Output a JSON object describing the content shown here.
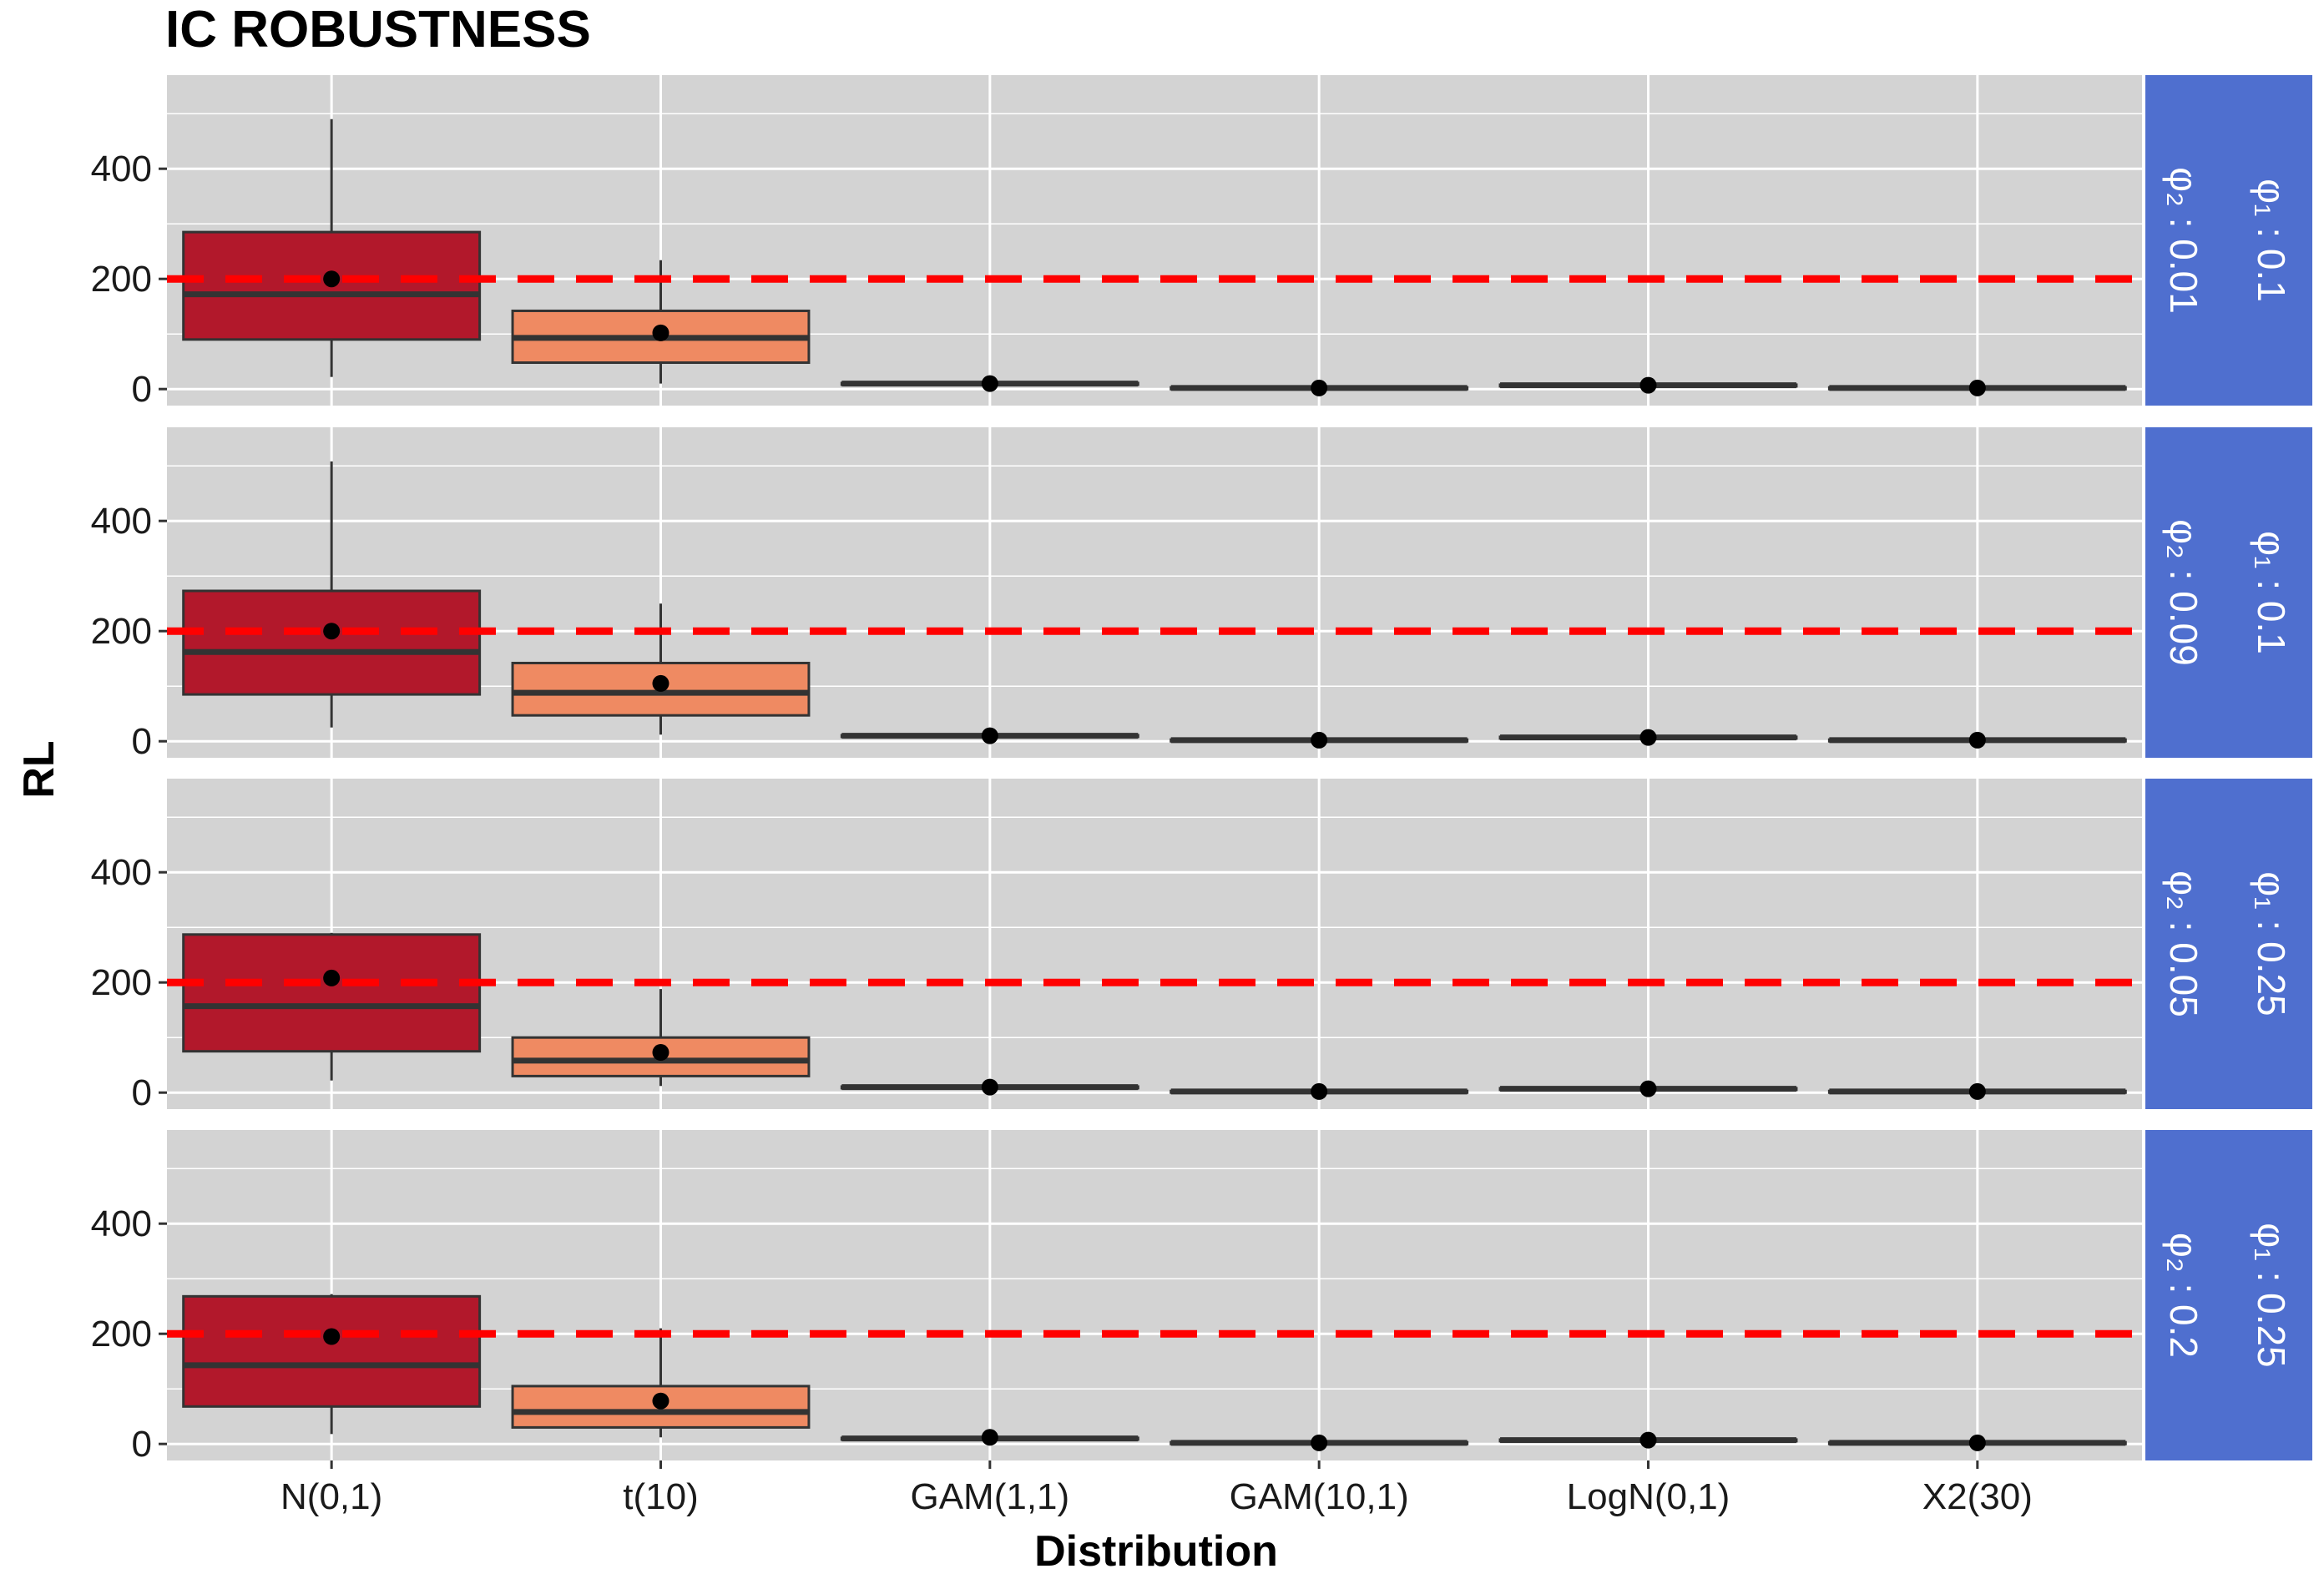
{
  "chart_data": {
    "type": "boxplot",
    "title": "IC ROBUSTNESS",
    "xlabel": "Distribution",
    "ylabel": "RL",
    "categories": [
      "N(0,1)",
      "t(10)",
      "GAM(1,1)",
      "GAM(10,1)",
      "LogN(0,1)",
      "X2(30)"
    ],
    "y_ticks": [
      0,
      200,
      400
    ],
    "ylim": [
      -30,
      570
    ],
    "reference_line": {
      "y": 200,
      "style": "dashed",
      "color": "#ff0000"
    },
    "grid": true,
    "legend": "none",
    "colors": {
      "panel_bg": "#d3d3d3",
      "grid": "#ffffff",
      "strip_bg": "#4f6fcf",
      "box_stroke": "#333333",
      "mean_point": "#000000",
      "category_fills": [
        "#b2182b",
        "#ef8a62",
        "#f4a582",
        "#f4a582",
        "#f4a582",
        "#f4a582"
      ]
    },
    "panels": [
      {
        "strip_label_1": "φ₁ : 0.1",
        "strip_label_2": "φ₂ : 0.01",
        "boxes": [
          {
            "min": 22,
            "q1": 90,
            "median": 172,
            "q3": 285,
            "max": 490,
            "mean": 200
          },
          {
            "min": 10,
            "q1": 48,
            "median": 93,
            "q3": 142,
            "max": 234,
            "mean": 102
          },
          {
            "min": 8,
            "q1": 8,
            "median": 10,
            "q3": 11,
            "max": 12,
            "mean": 10
          },
          {
            "min": 1,
            "q1": 1,
            "median": 2,
            "q3": 3,
            "max": 3,
            "mean": 2
          },
          {
            "min": 5,
            "q1": 6,
            "median": 7,
            "q3": 8,
            "max": 9,
            "mean": 7
          },
          {
            "min": 1,
            "q1": 1,
            "median": 2,
            "q3": 3,
            "max": 3,
            "mean": 2
          }
        ]
      },
      {
        "strip_label_1": "φ₁ : 0.1",
        "strip_label_2": "φ₂ : 0.09",
        "boxes": [
          {
            "min": 25,
            "q1": 85,
            "median": 162,
            "q3": 273,
            "max": 508,
            "mean": 200
          },
          {
            "min": 12,
            "q1": 47,
            "median": 88,
            "q3": 142,
            "max": 250,
            "mean": 105
          },
          {
            "min": 8,
            "q1": 8,
            "median": 10,
            "q3": 11,
            "max": 12,
            "mean": 10
          },
          {
            "min": 1,
            "q1": 1,
            "median": 2,
            "q3": 3,
            "max": 3,
            "mean": 2
          },
          {
            "min": 5,
            "q1": 6,
            "median": 7,
            "q3": 8,
            "max": 9,
            "mean": 7
          },
          {
            "min": 1,
            "q1": 1,
            "median": 2,
            "q3": 3,
            "max": 3,
            "mean": 2
          }
        ]
      },
      {
        "strip_label_1": "φ₁ : 0.25",
        "strip_label_2": "φ₂ : 0.05",
        "boxes": [
          {
            "min": 22,
            "q1": 75,
            "median": 157,
            "q3": 287,
            "max": 290,
            "mean": 208
          },
          {
            "min": 12,
            "q1": 30,
            "median": 58,
            "q3": 100,
            "max": 188,
            "mean": 73
          },
          {
            "min": 8,
            "q1": 8,
            "median": 10,
            "q3": 11,
            "max": 12,
            "mean": 10
          },
          {
            "min": 1,
            "q1": 1,
            "median": 2,
            "q3": 3,
            "max": 3,
            "mean": 2
          },
          {
            "min": 5,
            "q1": 6,
            "median": 7,
            "q3": 8,
            "max": 9,
            "mean": 7
          },
          {
            "min": 1,
            "q1": 1,
            "median": 2,
            "q3": 3,
            "max": 3,
            "mean": 2
          }
        ]
      },
      {
        "strip_label_1": "φ₁ : 0.25",
        "strip_label_2": "φ₂ : 0.2",
        "boxes": [
          {
            "min": 18,
            "q1": 68,
            "median": 143,
            "q3": 268,
            "max": 272,
            "mean": 195
          },
          {
            "min": 12,
            "q1": 30,
            "median": 58,
            "q3": 105,
            "max": 210,
            "mean": 78
          },
          {
            "min": 8,
            "q1": 8,
            "median": 10,
            "q3": 11,
            "max": 12,
            "mean": 12
          },
          {
            "min": 1,
            "q1": 1,
            "median": 2,
            "q3": 3,
            "max": 3,
            "mean": 2
          },
          {
            "min": 5,
            "q1": 6,
            "median": 7,
            "q3": 8,
            "max": 9,
            "mean": 7
          },
          {
            "min": 1,
            "q1": 1,
            "median": 2,
            "q3": 3,
            "max": 3,
            "mean": 2
          }
        ]
      }
    ]
  }
}
